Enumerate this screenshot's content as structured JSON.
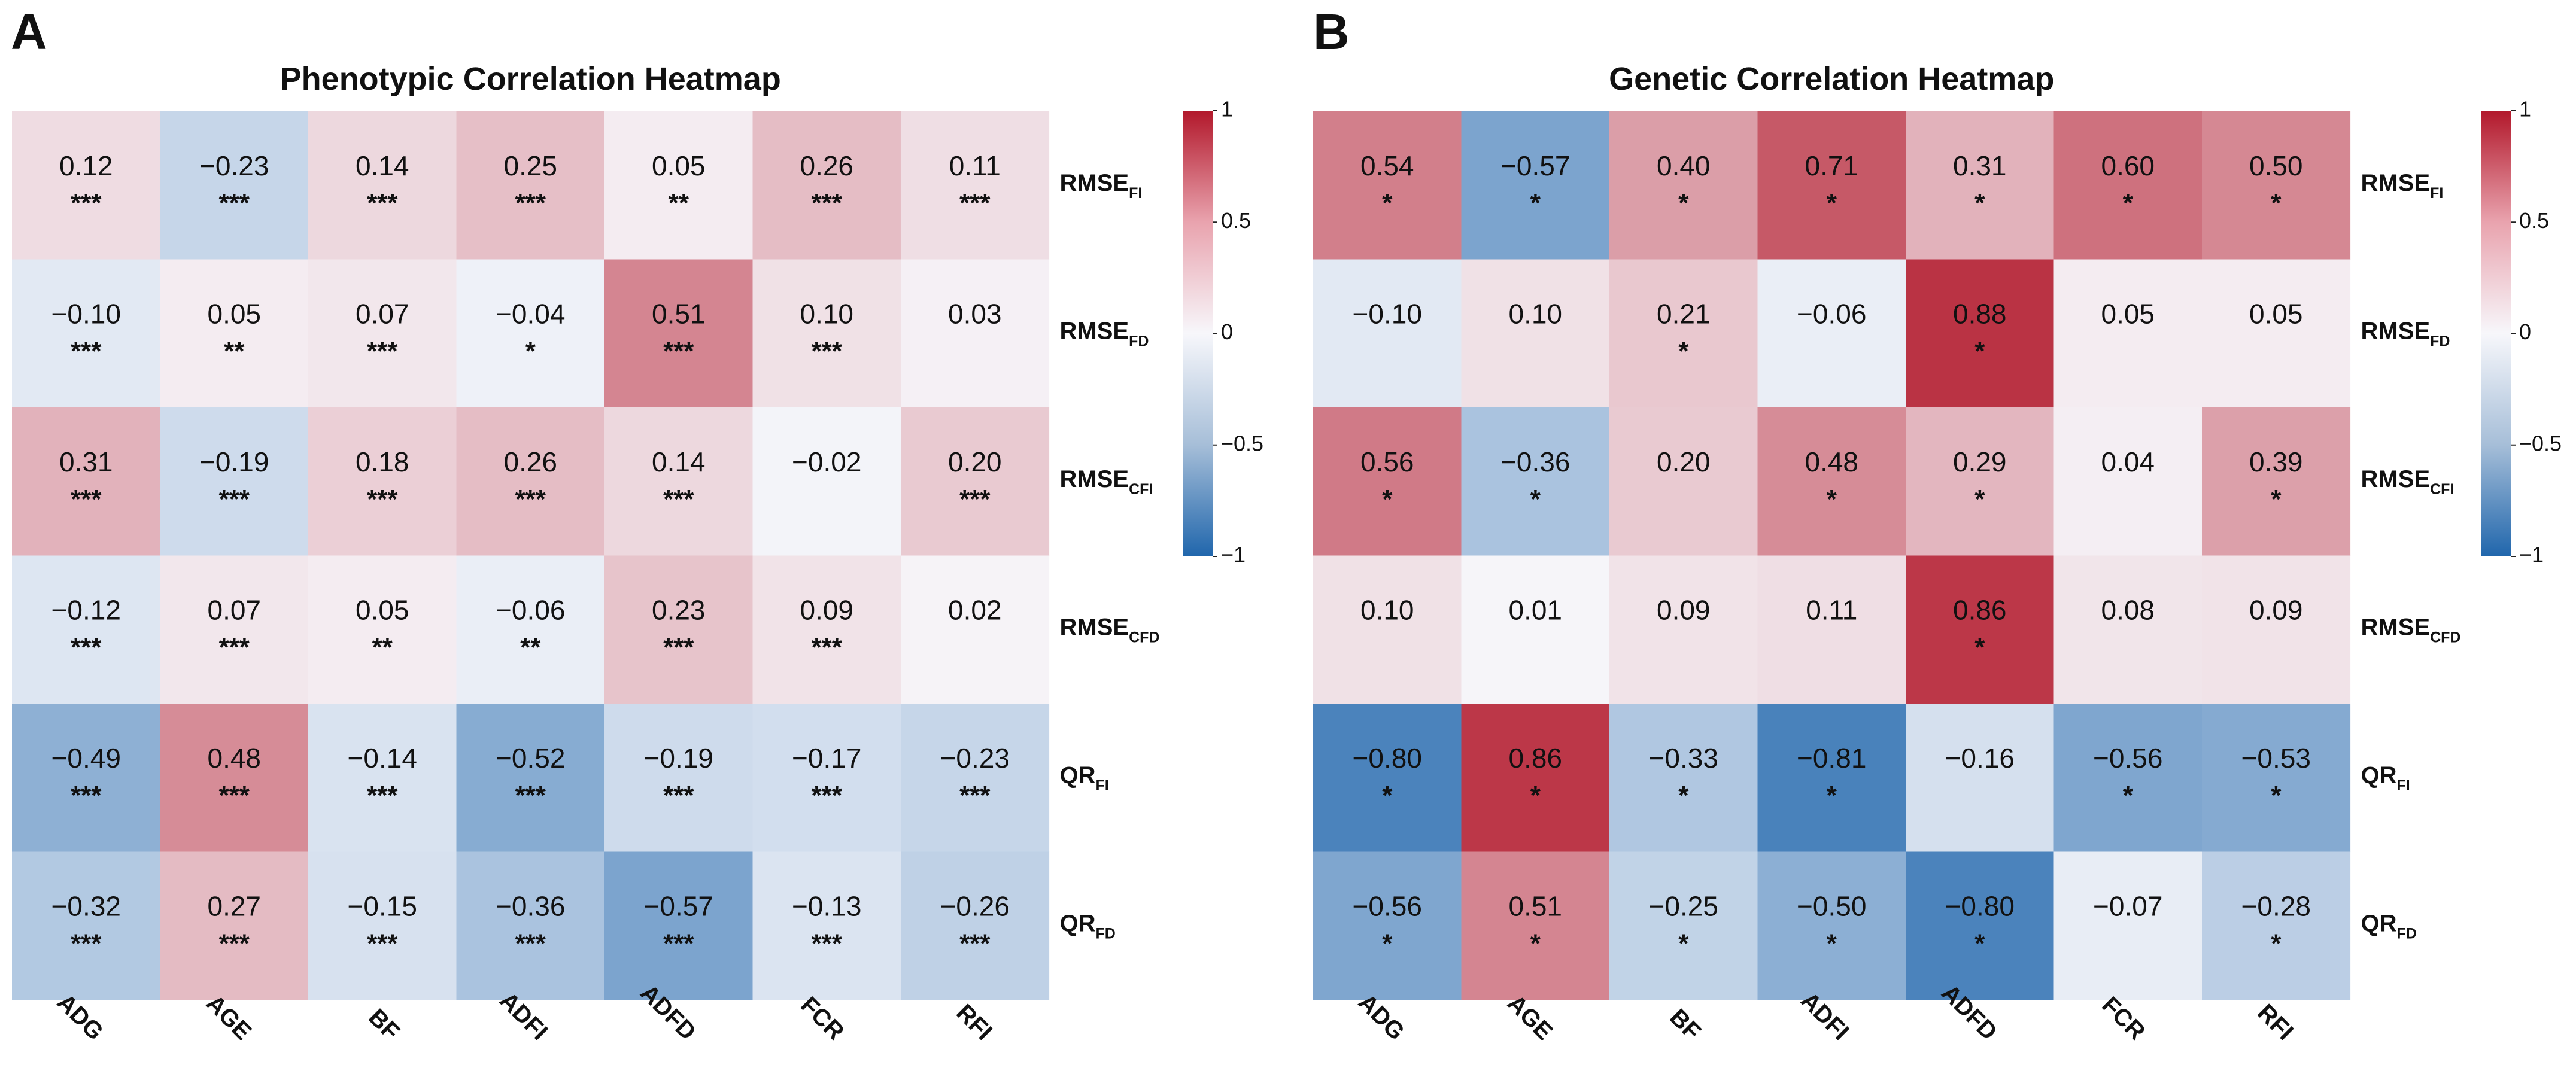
{
  "colors": {
    "negative": "#2066AC",
    "neutral": "#F7F7FB",
    "positive": "#B2182B"
  },
  "chart_data": [
    {
      "type": "heatmap",
      "panel_label": "A",
      "title": "Phenotypic Correlation Heatmap",
      "columns": [
        "ADG",
        "AGE",
        "BF",
        "ADFI",
        "ADFD",
        "FCR",
        "RFI"
      ],
      "rows": [
        {
          "main": "RMSE",
          "sub": "FI"
        },
        {
          "main": "RMSE",
          "sub": "FD"
        },
        {
          "main": "RMSE",
          "sub": "CFI"
        },
        {
          "main": "RMSE",
          "sub": "CFD"
        },
        {
          "main": "QR",
          "sub": "FI"
        },
        {
          "main": "QR",
          "sub": "FD"
        }
      ],
      "values": [
        [
          0.12,
          -0.23,
          0.14,
          0.25,
          0.05,
          0.26,
          0.11
        ],
        [
          -0.1,
          0.05,
          0.07,
          -0.04,
          0.51,
          0.1,
          0.03
        ],
        [
          0.31,
          -0.19,
          0.18,
          0.26,
          0.14,
          -0.02,
          0.2
        ],
        [
          -0.12,
          0.07,
          0.05,
          -0.06,
          0.23,
          0.09,
          0.02
        ],
        [
          -0.49,
          0.48,
          -0.14,
          -0.52,
          -0.19,
          -0.17,
          -0.23
        ],
        [
          -0.32,
          0.27,
          -0.15,
          -0.36,
          -0.57,
          -0.13,
          -0.26
        ]
      ],
      "significance": [
        [
          "***",
          "***",
          "***",
          "***",
          "**",
          "***",
          "***"
        ],
        [
          "***",
          "**",
          "***",
          "*",
          "***",
          "***",
          ""
        ],
        [
          "***",
          "***",
          "***",
          "***",
          "***",
          "",
          "***"
        ],
        [
          "***",
          "***",
          "**",
          "**",
          "***",
          "***",
          ""
        ],
        [
          "***",
          "***",
          "***",
          "***",
          "***",
          "***",
          "***"
        ],
        [
          "***",
          "***",
          "***",
          "***",
          "***",
          "***",
          "***"
        ]
      ],
      "colorbar": {
        "min": -1,
        "max": 1,
        "ticks": [
          1,
          0.5,
          0,
          -0.5,
          -1
        ],
        "tick_labels": [
          "1",
          "0.5",
          "0",
          "−0.5",
          "−1"
        ]
      }
    },
    {
      "type": "heatmap",
      "panel_label": "B",
      "title": "Genetic Correlation Heatmap",
      "columns": [
        "ADG",
        "AGE",
        "BF",
        "ADFI",
        "ADFD",
        "FCR",
        "RFI"
      ],
      "rows": [
        {
          "main": "RMSE",
          "sub": "FI"
        },
        {
          "main": "RMSE",
          "sub": "FD"
        },
        {
          "main": "RMSE",
          "sub": "CFI"
        },
        {
          "main": "RMSE",
          "sub": "CFD"
        },
        {
          "main": "QR",
          "sub": "FI"
        },
        {
          "main": "QR",
          "sub": "FD"
        }
      ],
      "values": [
        [
          0.54,
          -0.57,
          0.4,
          0.71,
          0.31,
          0.6,
          0.5
        ],
        [
          -0.1,
          0.1,
          0.21,
          -0.06,
          0.88,
          0.05,
          0.05
        ],
        [
          0.56,
          -0.36,
          0.2,
          0.48,
          0.29,
          0.04,
          0.39
        ],
        [
          0.1,
          0.01,
          0.09,
          0.11,
          0.86,
          0.08,
          0.09
        ],
        [
          -0.8,
          0.86,
          -0.33,
          -0.81,
          -0.16,
          -0.56,
          -0.53
        ],
        [
          -0.56,
          0.51,
          -0.25,
          -0.5,
          -0.8,
          -0.07,
          -0.28
        ]
      ],
      "significance": [
        [
          "*",
          "*",
          "*",
          "*",
          "*",
          "*",
          "*"
        ],
        [
          "",
          "",
          "*",
          "",
          "*",
          "",
          ""
        ],
        [
          "*",
          "*",
          "",
          "*",
          "*",
          "",
          "*"
        ],
        [
          "",
          "",
          "",
          "",
          "*",
          "",
          ""
        ],
        [
          "*",
          "*",
          "*",
          "*",
          "",
          "*",
          "*"
        ],
        [
          "*",
          "*",
          "*",
          "*",
          "*",
          "",
          "*"
        ]
      ],
      "colorbar": {
        "min": -1,
        "max": 1,
        "ticks": [
          1,
          0.5,
          0,
          -0.5,
          -1
        ],
        "tick_labels": [
          "1",
          "0.5",
          "0",
          "−0.5",
          "−1"
        ]
      }
    }
  ]
}
